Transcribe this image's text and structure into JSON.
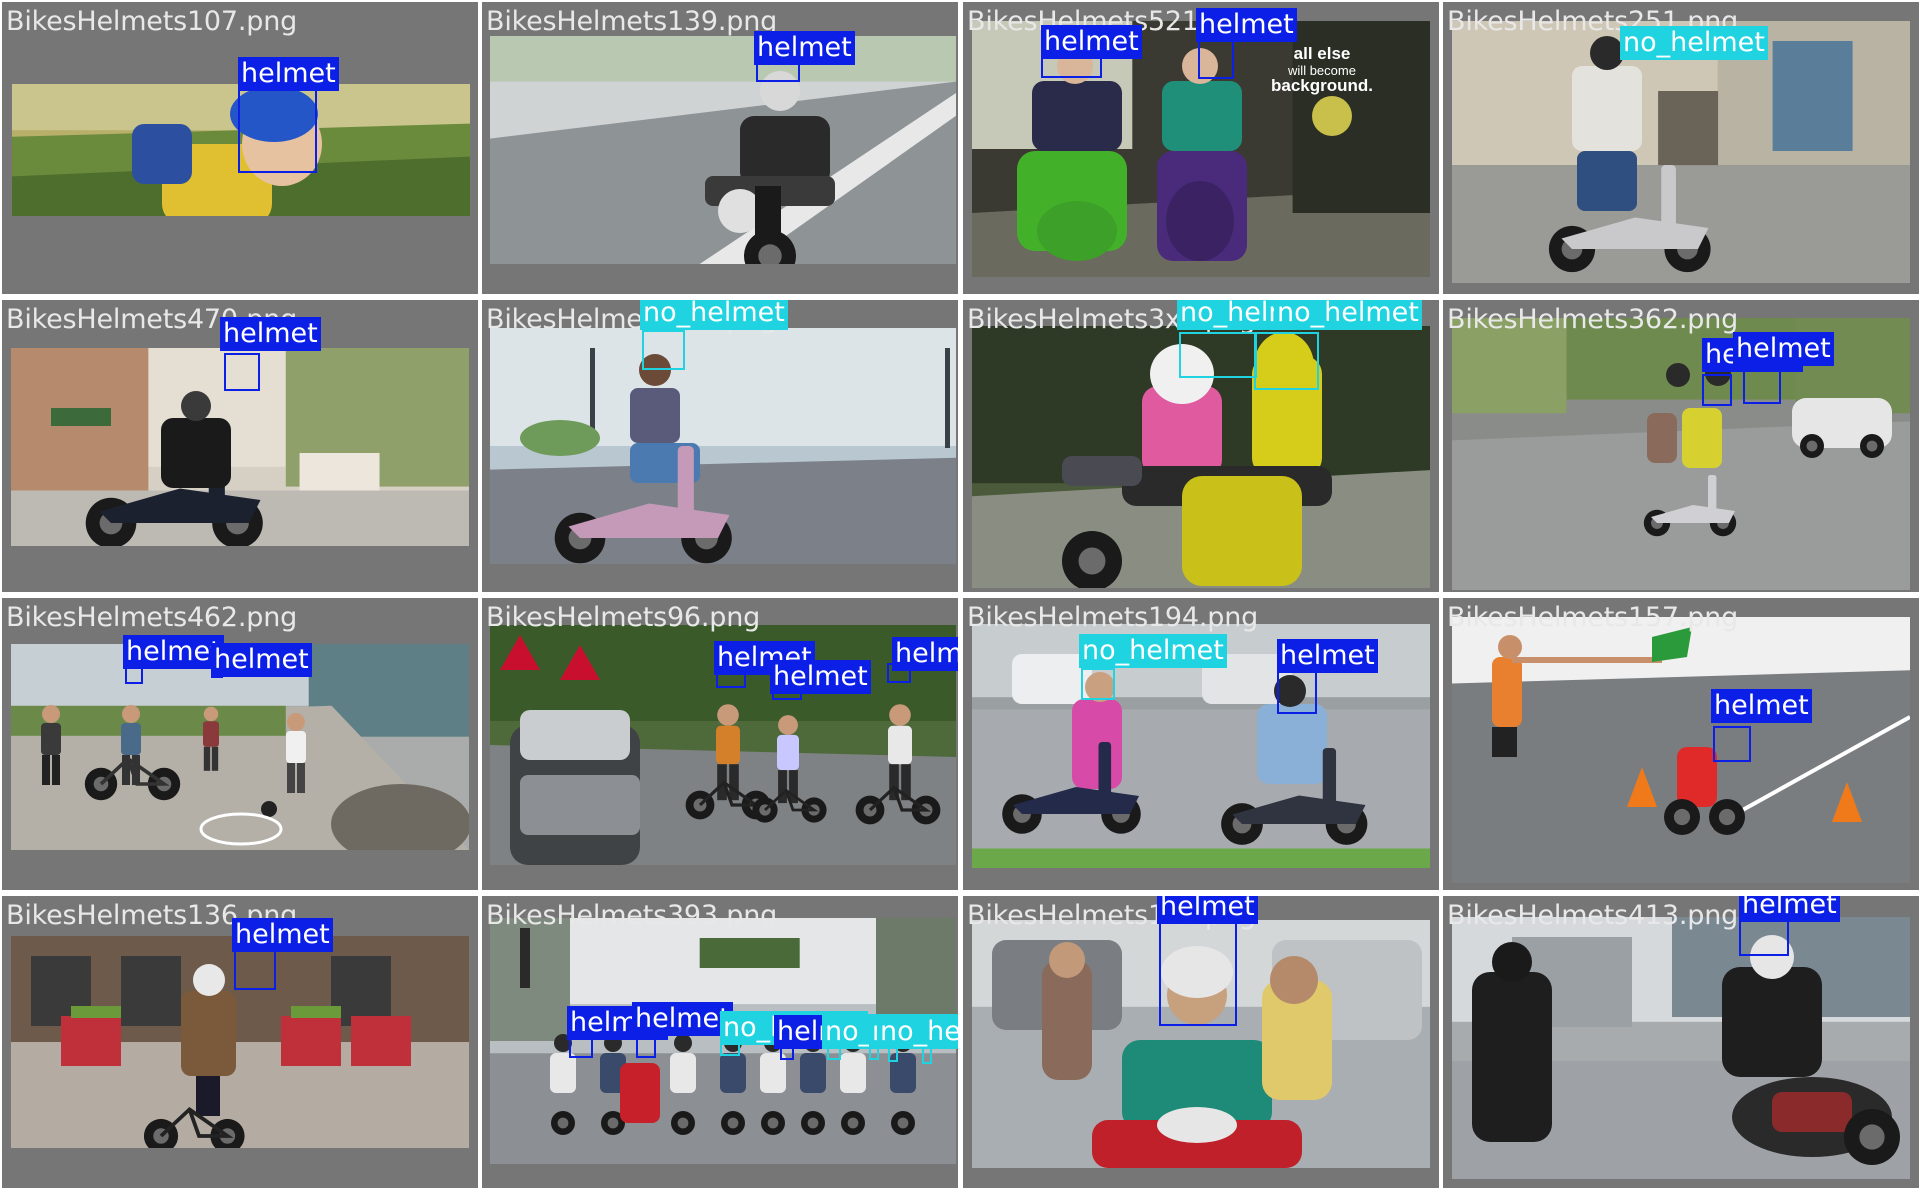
{
  "colors": {
    "helmet": "#0b1fe6",
    "no_helmet": "#1fd3e1",
    "tile_bg": "#767676"
  },
  "tiles": [
    {
      "file": "BikesHelmets107.png",
      "scene": "kid-bike",
      "labels": [
        "helmet"
      ]
    },
    {
      "file": "BikesHelmets139.png",
      "scene": "road-motorbike",
      "labels": [
        "helmet"
      ]
    },
    {
      "file": "BikesHelmets521.png",
      "scene": "scooter-ad",
      "labels": [
        "helmet",
        "helmet"
      ],
      "poster": [
        "all else",
        "will become",
        "background."
      ]
    },
    {
      "file": "BikesHelmets251.png",
      "scene": "scooter-street",
      "labels": [
        "no_helmet"
      ]
    },
    {
      "file": "BikesHelmets470.png",
      "scene": "maxi-scooter",
      "labels": [
        "helmet"
      ]
    },
    {
      "file": "BikesHelmets303.png",
      "scene": "pink-scooter",
      "labels": [
        "no_helmet"
      ]
    },
    {
      "file": "BikesHelmets3xx.png",
      "scene": "two-riders",
      "labels": [
        "no_helmet",
        "no_helmet"
      ]
    },
    {
      "file": "BikesHelmets362.png",
      "scene": "city-road",
      "labels": [
        "helmet",
        "helmet"
      ]
    },
    {
      "file": "BikesHelmets462.png",
      "scene": "promenade",
      "labels": [
        "helmet",
        "helmet"
      ]
    },
    {
      "file": "BikesHelmets96.png",
      "scene": "cyclists-road",
      "labels": [
        "helmet",
        "helmet",
        "helmet"
      ]
    },
    {
      "file": "BikesHelmets194.png",
      "scene": "street-scooters",
      "labels": [
        "no_helmet",
        "helmet"
      ]
    },
    {
      "file": "BikesHelmets157.png",
      "scene": "flag-track",
      "labels": [
        "helmet"
      ]
    },
    {
      "file": "BikesHelmets136.png",
      "scene": "city-bike",
      "labels": [
        "helmet"
      ]
    },
    {
      "file": "BikesHelmets393.png",
      "scene": "traffic",
      "labels": [
        "helmet",
        "helmet",
        "no_helmet",
        "helmet",
        "no_helmet",
        "no_helmet",
        "no_helmet",
        "no_helmet"
      ]
    },
    {
      "file": "BikesHelmets1xx.png",
      "scene": "women-scooter",
      "labels": [
        "helmet"
      ]
    },
    {
      "file": "BikesHelmets413.png",
      "scene": "parking-lot",
      "labels": [
        "helmet"
      ]
    }
  ]
}
